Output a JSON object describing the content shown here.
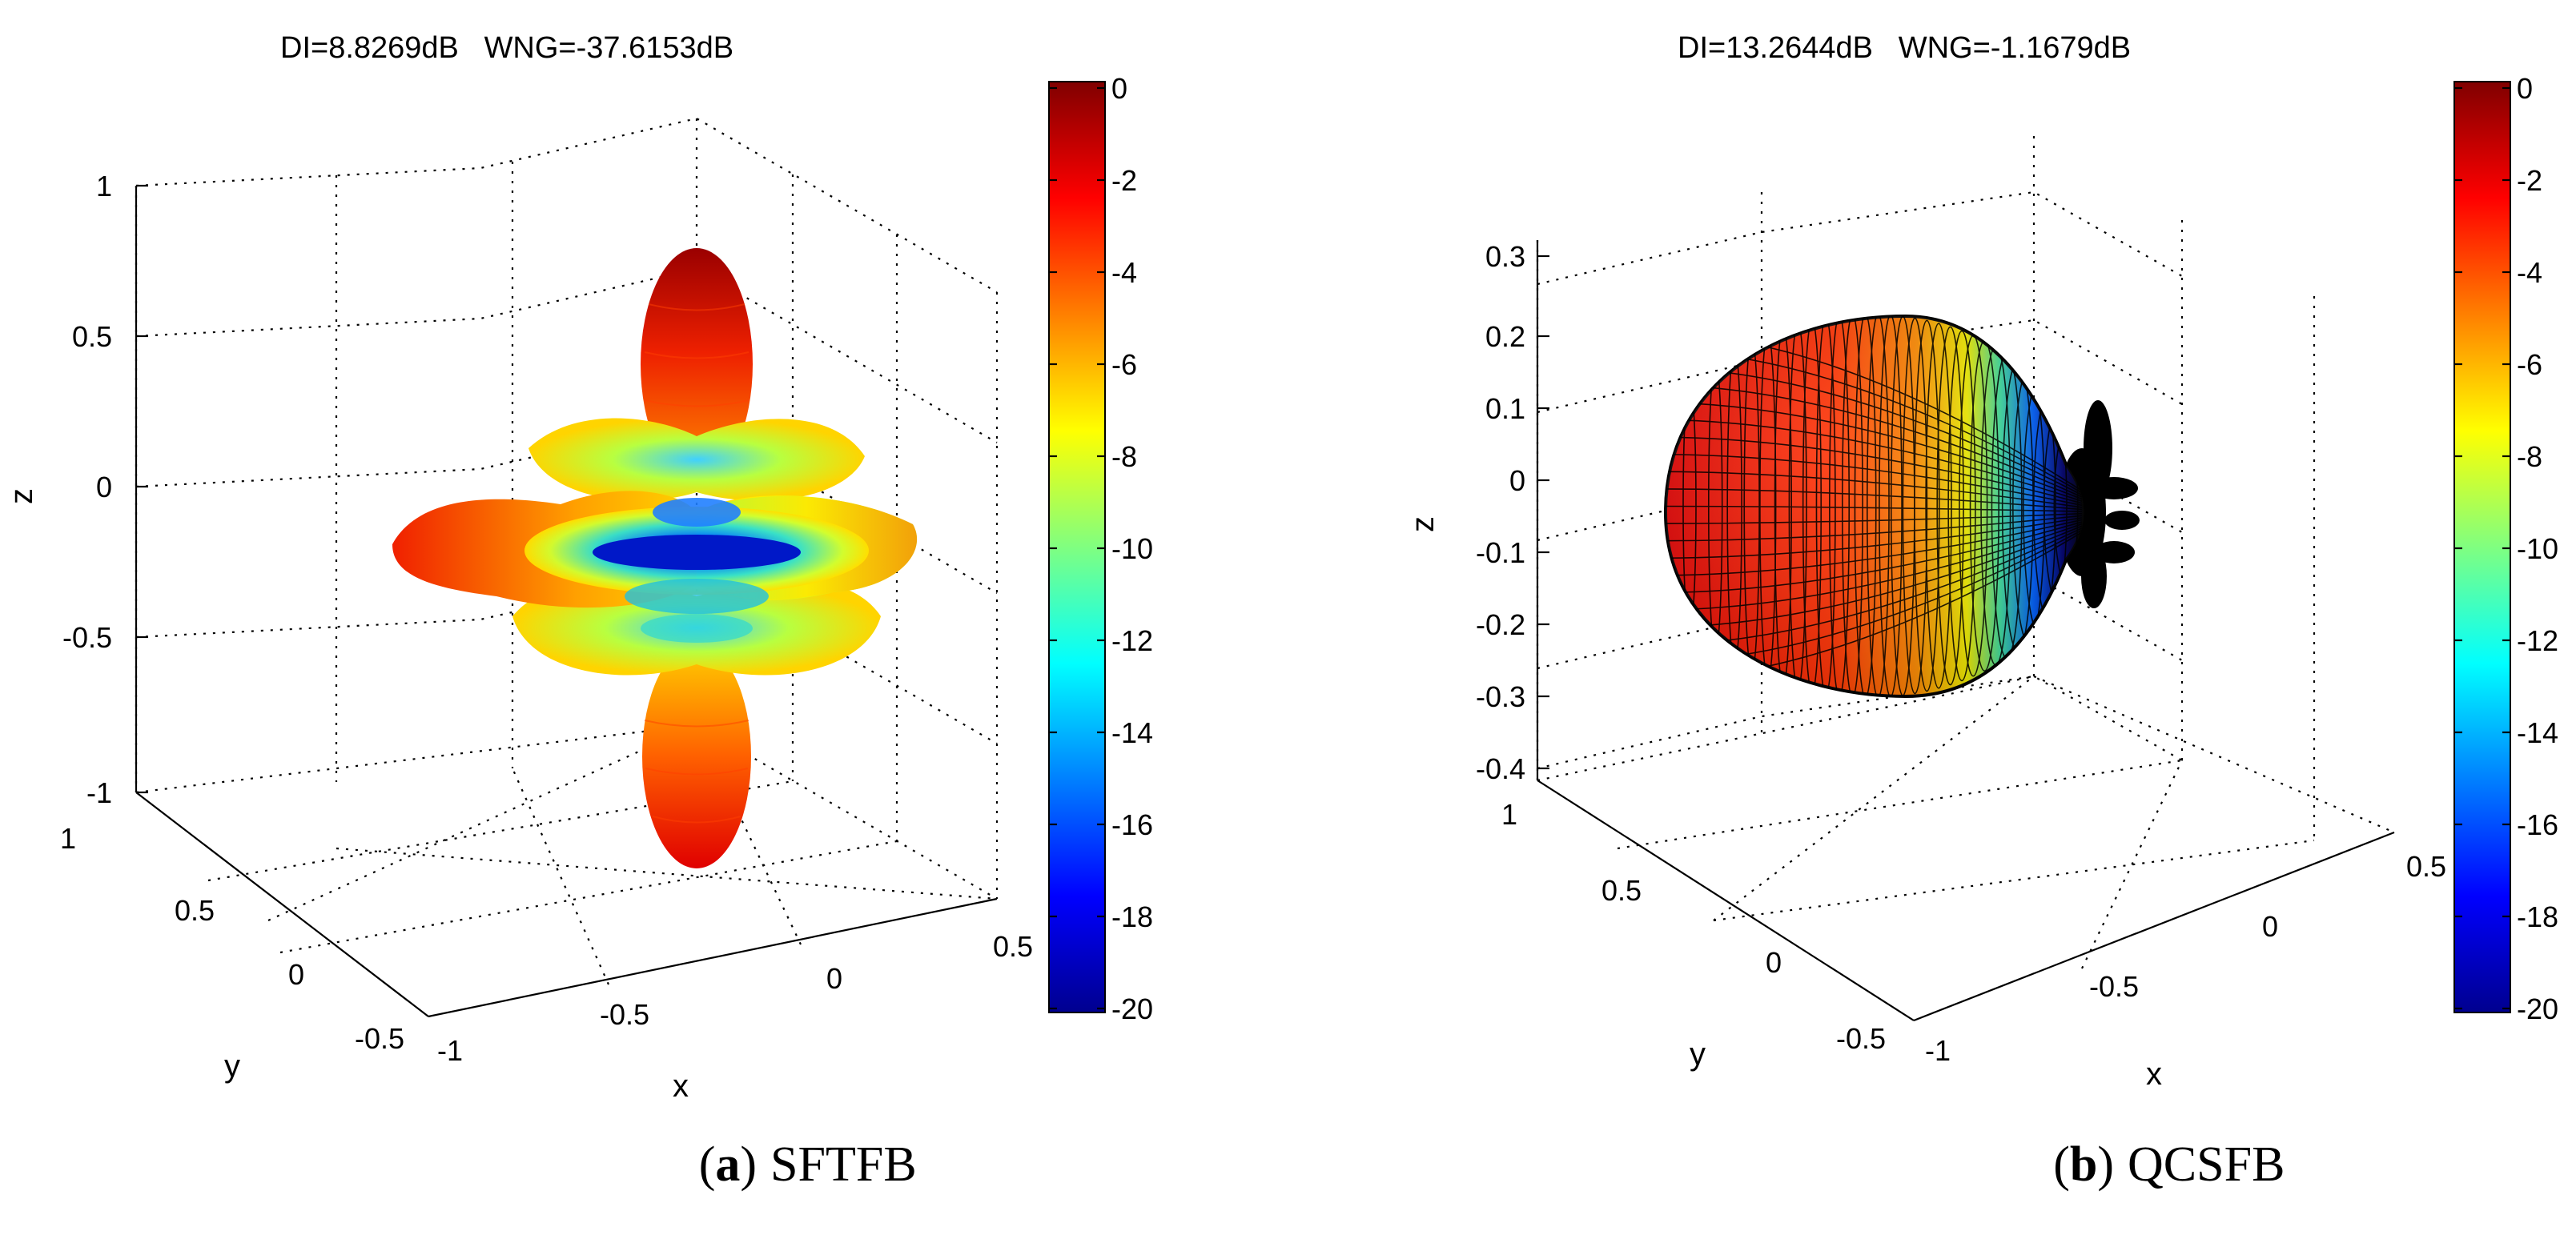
{
  "chart_data": [
    {
      "type": "3d-surface",
      "panel_label": "(a)",
      "caption": "SFTFB",
      "title": "DI=8.8269dB   WNG=-37.6153dB",
      "xlabel": "x",
      "ylabel": "y",
      "zlabel": "z",
      "xticks": [
        "-1",
        "-0.5",
        "0",
        "0.5"
      ],
      "yticks": [
        "-0.5",
        "0",
        "0.5",
        "1"
      ],
      "zticks": [
        "1",
        "0.5",
        "0",
        "-0.5",
        "-1"
      ],
      "xlim": [
        -1,
        0.5
      ],
      "ylim": [
        -0.5,
        1
      ],
      "zlim": [
        -1,
        1
      ],
      "colorbar": {
        "min": -20,
        "max": 0,
        "ticks": [
          "0",
          "-2",
          "-4",
          "-6",
          "-8",
          "-10",
          "-12",
          "-14",
          "-16",
          "-18",
          "-20"
        ]
      },
      "shape": "multi-lobe beampattern: vertical main lobes at top and bottom with three rings of stacked side lobes around the center"
    },
    {
      "type": "3d-surface",
      "panel_label": "(b)",
      "caption": "QCSFB",
      "title": "DI=13.2644dB   WNG=-1.1679dB",
      "xlabel": "x",
      "ylabel": "y",
      "zlabel": "z",
      "xticks": [
        "-1",
        "-0.5",
        "0",
        "0.5"
      ],
      "yticks": [
        "-0.5",
        "0",
        "0.5",
        "1"
      ],
      "zticks": [
        "0.3",
        "0.2",
        "0.1",
        "0",
        "-0.1",
        "-0.2",
        "-0.3",
        "-0.4"
      ],
      "xlim": [
        -1,
        0.5
      ],
      "ylim": [
        -0.5,
        1
      ],
      "zlim": [
        -0.4,
        0.3
      ],
      "colorbar": {
        "min": -20,
        "max": 0,
        "ticks": [
          "0",
          "-2",
          "-4",
          "-6",
          "-8",
          "-10",
          "-12",
          "-14",
          "-16",
          "-18",
          "-20"
        ]
      },
      "shape": "single forward main lobe (balloon) with mesh lines and small back side lobes"
    }
  ],
  "colors": {
    "jet": [
      "#00008F",
      "#0000FF",
      "#0080FF",
      "#00FFFF",
      "#80FF80",
      "#FFFF00",
      "#FF8000",
      "#FF0000",
      "#800000"
    ]
  }
}
